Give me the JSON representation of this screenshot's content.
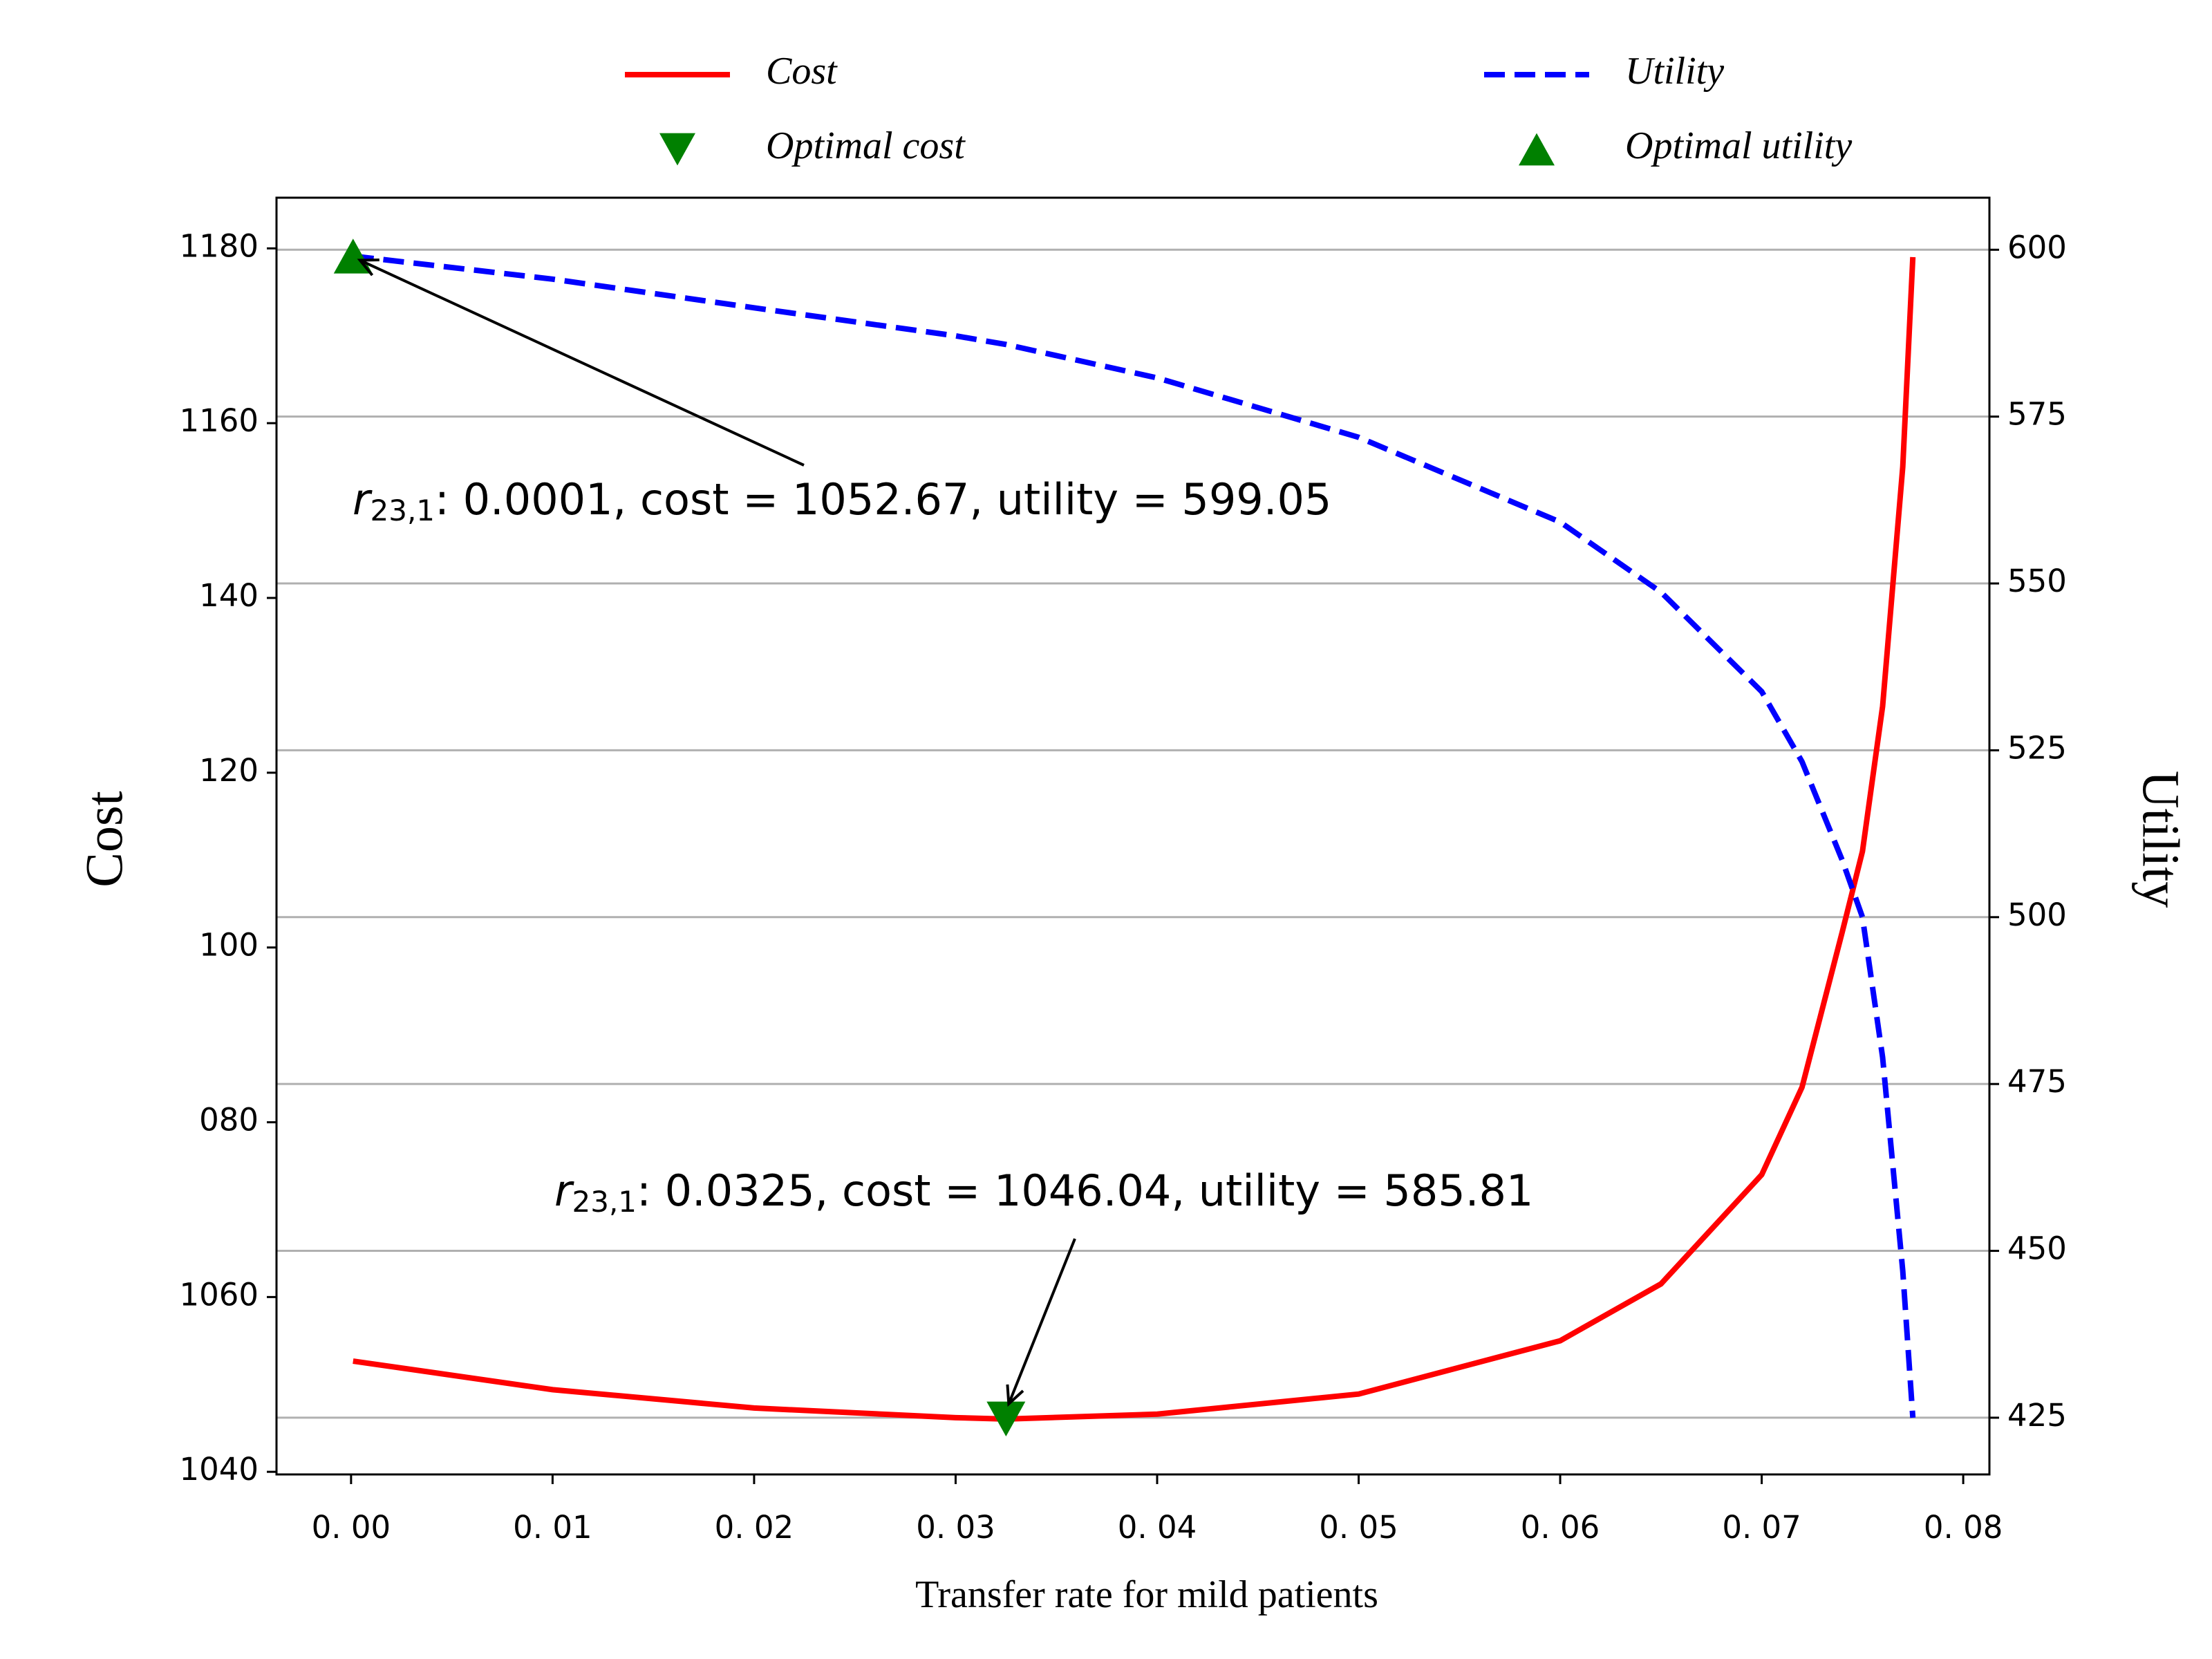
{
  "chart_data": {
    "type": "line",
    "xlabel": "Transfer rate for mild patients",
    "ylabel": "Cost",
    "y2label": "Utility",
    "x": [
      0.0001,
      0.01,
      0.02,
      0.03,
      0.0325,
      0.04,
      0.05,
      0.06,
      0.065,
      0.07,
      0.072,
      0.074,
      0.075,
      0.076,
      0.077,
      0.0775
    ],
    "series": [
      {
        "name": "Cost",
        "color": "#ff0000",
        "dash": "solid",
        "axis": "y",
        "values": [
          1052.67,
          1049.4,
          1047.3,
          1046.2,
          1046.04,
          1046.6,
          1048.9,
          1055,
          1061.5,
          1074,
          1084,
          1101.8,
          1111,
          1127.6,
          1155,
          1179
        ]
      },
      {
        "name": "Utility",
        "color": "#0000ff",
        "dash": "dashed",
        "axis": "y2",
        "values": [
          599.05,
          595.6,
          591.3,
          587.1,
          585.81,
          580.8,
          571.9,
          559.2,
          548.7,
          533.8,
          523.3,
          508.5,
          500,
          479,
          447,
          425
        ]
      }
    ],
    "markers": [
      {
        "name": "Optimal cost",
        "x": 0.0325,
        "y": 1046.04,
        "axis": "y",
        "shape": "down",
        "color": "#008000"
      },
      {
        "name": "Optimal utility",
        "x": 0.0001,
        "y": 599.05,
        "axis": "y2",
        "shape": "up",
        "color": "#008000"
      }
    ],
    "annotations": [
      {
        "var": "r",
        "sub": "23,1",
        "text": ": 0.0001, cost = 1052.67, utility = 599.05"
      },
      {
        "var": "r",
        "sub": "23,1",
        "text": ": 0.0325, cost = 1046.04, utility = 585.81"
      }
    ],
    "xlim": [
      -0.0037,
      0.0813
    ],
    "xticks": [
      {
        "value": 0,
        "label": "0. 00"
      },
      {
        "value": 0.01,
        "label": "0. 01"
      },
      {
        "value": 0.02,
        "label": "0. 02"
      },
      {
        "value": 0.03,
        "label": "0. 03"
      },
      {
        "value": 0.04,
        "label": "0. 04"
      },
      {
        "value": 0.05,
        "label": "0. 05"
      },
      {
        "value": 0.06,
        "label": "0. 06"
      },
      {
        "value": 0.07,
        "label": "0. 07"
      },
      {
        "value": 0.08,
        "label": "0. 08"
      }
    ],
    "ylim": [
      1039.7,
      1185.8
    ],
    "yticks": [
      1040,
      1060,
      {
        "value": 1080,
        "label": "080"
      },
      {
        "value": 1100,
        "label": "100"
      },
      {
        "value": 1120,
        "label": "120"
      },
      {
        "value": 1140,
        "label": "140"
      },
      1160,
      1180
    ],
    "y2lim": [
      416.5,
      607.8
    ],
    "y2ticks": [
      425,
      450,
      475,
      500,
      525,
      550,
      575,
      600
    ],
    "grid": "y2",
    "legend": "top"
  }
}
